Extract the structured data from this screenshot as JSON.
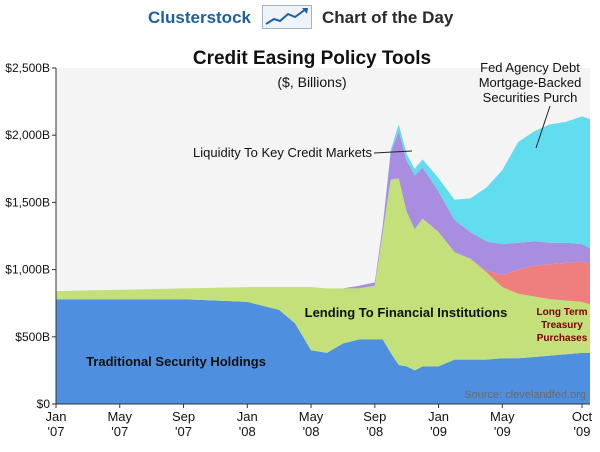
{
  "header": {
    "brand": "Clusterstock",
    "subtitle": "Chart of the Day"
  },
  "chart_data": {
    "type": "area",
    "stacked": true,
    "title": "Credit Easing Policy Tools",
    "subtitle": "($, Billions)",
    "source": "Source: clevelandfed.org",
    "ylim": [
      0,
      2500
    ],
    "yticks": [
      "$0",
      "$500B",
      "$1,000B",
      "$1,500B",
      "$2,000B",
      "$2,500B"
    ],
    "ytick_values": [
      0,
      500,
      1000,
      1500,
      2000,
      2500
    ],
    "xticks": [
      {
        "line1": "Jan",
        "line2": "'07"
      },
      {
        "line1": "May",
        "line2": "'07"
      },
      {
        "line1": "Sep",
        "line2": "'07"
      },
      {
        "line1": "Jan",
        "line2": "'08"
      },
      {
        "line1": "May",
        "line2": "'08"
      },
      {
        "line1": "Sep",
        "line2": "'08"
      },
      {
        "line1": "Jan",
        "line2": "'09"
      },
      {
        "line1": "May",
        "line2": "'09"
      },
      {
        "line1": "Oct",
        "line2": "'09"
      }
    ],
    "xtick_months": [
      0,
      4,
      8,
      12,
      16,
      20,
      24,
      28,
      33
    ],
    "x_months": [
      0,
      2,
      4,
      6,
      8,
      10,
      12,
      14,
      15,
      16,
      17,
      18,
      19,
      20,
      20.5,
      21,
      21.5,
      22,
      22.5,
      23,
      24,
      25,
      26,
      27,
      28,
      29,
      30,
      31,
      32,
      33,
      33.5
    ],
    "x": [
      "Jan '07",
      "Mar '07",
      "May '07",
      "Jul '07",
      "Sep '07",
      "Nov '07",
      "Jan '08",
      "Mar '08",
      "Apr '08",
      "May '08",
      "Jun '08",
      "Jul '08",
      "Aug '08",
      "Sep '08",
      "mid Sep '08",
      "Oct '08",
      "mid Oct '08",
      "Nov '08",
      "mid Nov '08",
      "Dec '08",
      "Jan '09",
      "Feb '09",
      "Mar '09",
      "Apr '09",
      "May '09",
      "Jun '09",
      "Jul '09",
      "Aug '09",
      "Sep '09",
      "Oct '09",
      "mid Oct '09"
    ],
    "series": [
      {
        "name": "Traditional Security Holdings",
        "color": "#4f8fe0",
        "values": [
          780,
          780,
          780,
          780,
          780,
          770,
          760,
          700,
          600,
          400,
          380,
          450,
          480,
          480,
          480,
          380,
          290,
          280,
          250,
          280,
          280,
          330,
          330,
          330,
          340,
          340,
          350,
          360,
          370,
          380,
          380
        ]
      },
      {
        "name": "Lending To Financial Institutions",
        "color": "#c3e07a",
        "values": [
          60,
          65,
          70,
          75,
          80,
          95,
          110,
          170,
          270,
          470,
          480,
          410,
          380,
          400,
          800,
          1290,
          1390,
          1150,
          1050,
          1100,
          1000,
          800,
          750,
          650,
          530,
          480,
          450,
          420,
          400,
          380,
          360
        ]
      },
      {
        "name": "Long Term Treasury Purchases",
        "color": "#ef7f7f",
        "values": [
          0,
          0,
          0,
          0,
          0,
          0,
          0,
          0,
          0,
          0,
          0,
          0,
          0,
          0,
          0,
          0,
          0,
          0,
          0,
          0,
          0,
          0,
          0,
          10,
          90,
          180,
          230,
          260,
          280,
          300,
          300
        ]
      },
      {
        "name": "Liquidity To Key Credit Markets",
        "color": "#a88de0",
        "values": [
          0,
          0,
          0,
          0,
          0,
          0,
          0,
          0,
          0,
          0,
          0,
          0,
          20,
          25,
          50,
          200,
          350,
          380,
          400,
          380,
          300,
          240,
          200,
          220,
          230,
          200,
          180,
          160,
          150,
          130,
          120
        ]
      },
      {
        "name": "Fed Agency Debt Mortgage-Backed Securities Purch",
        "color": "#62dcef",
        "values": [
          0,
          0,
          0,
          0,
          0,
          0,
          0,
          0,
          0,
          0,
          0,
          0,
          0,
          0,
          0,
          20,
          50,
          50,
          50,
          60,
          100,
          150,
          250,
          400,
          550,
          750,
          820,
          880,
          900,
          950,
          960
        ]
      }
    ],
    "annotations": [
      {
        "text": "Fed Agency Debt",
        "series": 4
      },
      {
        "text": "Mortgage-Backed",
        "series": 4
      },
      {
        "text": "Securities Purch",
        "series": 4
      },
      {
        "text": "Liquidity To Key Credit Markets",
        "series": 3
      },
      {
        "text": "Lending To Financial Institutions",
        "series": 1
      },
      {
        "text": "Long Term",
        "series": 2
      },
      {
        "text": "Treasury",
        "series": 2
      },
      {
        "text": "Purchases",
        "series": 2
      },
      {
        "text": "Traditional Security Holdings",
        "series": 0
      }
    ],
    "grid": false,
    "legend": "none"
  }
}
